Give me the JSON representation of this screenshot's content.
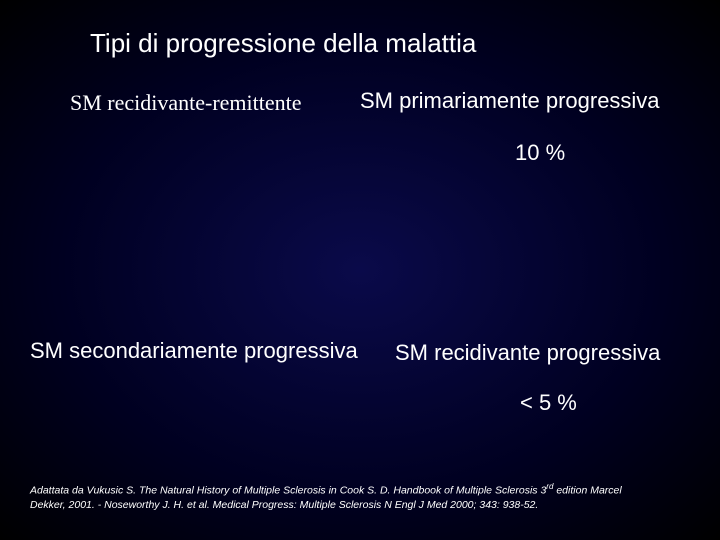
{
  "title": "Tipi di progressione della malattia",
  "quadrants": {
    "top_left": {
      "label": "SM recidivante-remittente"
    },
    "top_right": {
      "label": "SM primariamente progressiva",
      "percent": "10 %"
    },
    "bottom_left": {
      "label": "SM secondariamente progressiva"
    },
    "bottom_right": {
      "label": "SM recidivante progressiva",
      "percent": "< 5 %"
    }
  },
  "citation": {
    "line1_prefix": "Adattata da Vukusic S. The Natural History of Multiple Sclerosis in Cook S. D. Handbook of Multiple Sclerosis 3",
    "line1_sup": "rd",
    "line1_suffix": " edition Marcel",
    "line2": "Dekker, 2001. -  Noseworthy J. H. et al. Medical Progress: Multiple Sclerosis N Engl J Med 2000; 343: 938-52."
  },
  "colors": {
    "background_center": "#0a0a4a",
    "background_edge": "#000000",
    "text": "#ffffff"
  },
  "typography": {
    "title_fontsize": 26,
    "subtitle_fontsize": 22,
    "citation_fontsize": 10.5,
    "serif_font": "Times New Roman",
    "sans_font": "Arial"
  }
}
